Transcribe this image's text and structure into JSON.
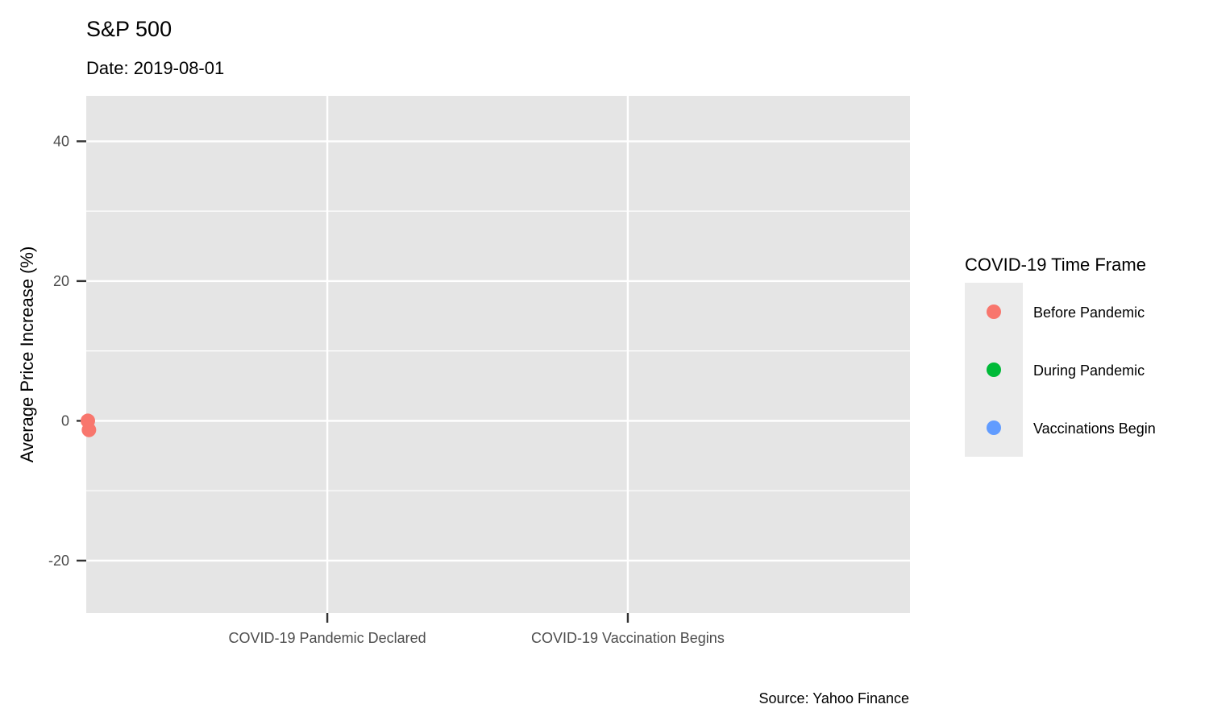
{
  "chart_data": {
    "type": "scatter",
    "title": "S&P 500",
    "subtitle": "Date: 2019-08-01",
    "xlabel": "",
    "ylabel": "Average Price Increase (%)",
    "caption": "Source: Yahoo Finance",
    "x_tick_labels": [
      "COVID-19 Pandemic Declared",
      "COVID-19 Vaccination Begins"
    ],
    "x_tick_dates": [
      "2020-03-11",
      "2020-12-14"
    ],
    "xlim": [
      "2019-08-01",
      "2021-09-01"
    ],
    "y_ticks": [
      -20,
      0,
      20,
      40
    ],
    "ylim": [
      -27.5,
      46.5
    ],
    "grid": true,
    "legend": {
      "title": "COVID-19 Time Frame",
      "placement": "right",
      "items": [
        {
          "label": "Before Pandemic",
          "color": "#F8766D"
        },
        {
          "label": "During Pandemic",
          "color": "#00BA38"
        },
        {
          "label": "Vaccinations Begin",
          "color": "#619CFF"
        }
      ]
    },
    "series": [
      {
        "name": "Before Pandemic",
        "color": "#F8766D",
        "points": [
          {
            "x": "2019-08-01",
            "y": 0.0
          },
          {
            "x": "2019-08-02",
            "y": -1.3
          }
        ]
      }
    ]
  }
}
